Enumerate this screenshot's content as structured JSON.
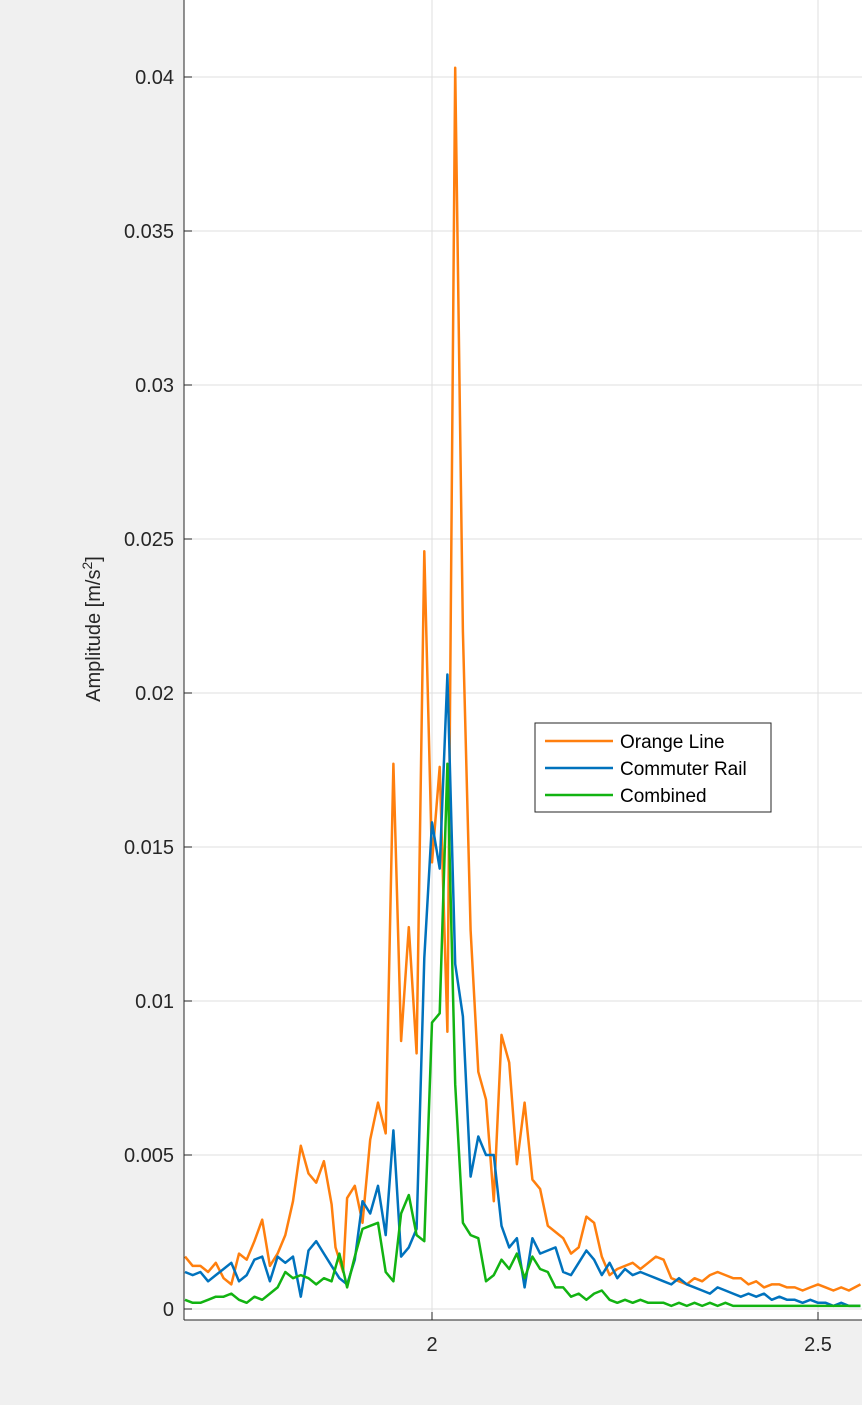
{
  "chart_data": {
    "type": "line",
    "title": "",
    "xlabel": "",
    "ylabel_main": "Amplitude [m/s",
    "ylabel_sup": "2",
    "ylabel_end": "]",
    "xlim": [
      1.68,
      2.555
    ],
    "ylim": [
      0,
      0.0432
    ],
    "grid": true,
    "legend_position": "center-right",
    "x_ticks": [
      {
        "value": 2.0,
        "label": "2"
      },
      {
        "value": 2.5,
        "label": "2.5"
      }
    ],
    "y_ticks": [
      {
        "value": 0,
        "label": "0"
      },
      {
        "value": 0.005,
        "label": "0.005"
      },
      {
        "value": 0.01,
        "label": "0.01"
      },
      {
        "value": 0.015,
        "label": "0.015"
      },
      {
        "value": 0.02,
        "label": "0.02"
      },
      {
        "value": 0.025,
        "label": "0.025"
      },
      {
        "value": 0.03,
        "label": "0.03"
      },
      {
        "value": 0.035,
        "label": "0.035"
      },
      {
        "value": 0.04,
        "label": "0.04"
      }
    ],
    "colors": {
      "background": "#f0f0f0",
      "axes_bg": "#ffffff",
      "grid": "#dfdfdf",
      "axis": "#262626"
    },
    "series": [
      {
        "name": "Orange Line",
        "color": "#ff7f0e",
        "points": [
          [
            1.68,
            0.0017
          ],
          [
            1.69,
            0.0014
          ],
          [
            1.7,
            0.0014
          ],
          [
            1.71,
            0.0012
          ],
          [
            1.72,
            0.0015
          ],
          [
            1.73,
            0.001
          ],
          [
            1.74,
            0.0008
          ],
          [
            1.75,
            0.0018
          ],
          [
            1.76,
            0.0016
          ],
          [
            1.77,
            0.0022
          ],
          [
            1.78,
            0.0029
          ],
          [
            1.79,
            0.0014
          ],
          [
            1.8,
            0.0018
          ],
          [
            1.81,
            0.0024
          ],
          [
            1.82,
            0.0035
          ],
          [
            1.83,
            0.0053
          ],
          [
            1.84,
            0.0044
          ],
          [
            1.85,
            0.0041
          ],
          [
            1.86,
            0.0048
          ],
          [
            1.87,
            0.0034
          ],
          [
            1.875,
            0.002
          ],
          [
            1.885,
            0.0012
          ],
          [
            1.89,
            0.0036
          ],
          [
            1.9,
            0.004
          ],
          [
            1.91,
            0.0028
          ],
          [
            1.92,
            0.0055
          ],
          [
            1.93,
            0.0067
          ],
          [
            1.94,
            0.0057
          ],
          [
            1.95,
            0.0177
          ],
          [
            1.96,
            0.0087
          ],
          [
            1.97,
            0.0124
          ],
          [
            1.98,
            0.0083
          ],
          [
            1.99,
            0.0246
          ],
          [
            2.0,
            0.0145
          ],
          [
            2.01,
            0.0176
          ],
          [
            2.02,
            0.009
          ],
          [
            2.03,
            0.0403
          ],
          [
            2.04,
            0.022
          ],
          [
            2.05,
            0.0123
          ],
          [
            2.06,
            0.0077
          ],
          [
            2.07,
            0.0068
          ],
          [
            2.08,
            0.0035
          ],
          [
            2.09,
            0.0089
          ],
          [
            2.1,
            0.008
          ],
          [
            2.11,
            0.0047
          ],
          [
            2.12,
            0.0067
          ],
          [
            2.13,
            0.0042
          ],
          [
            2.14,
            0.0039
          ],
          [
            2.15,
            0.0027
          ],
          [
            2.16,
            0.0025
          ],
          [
            2.17,
            0.0023
          ],
          [
            2.18,
            0.0018
          ],
          [
            2.19,
            0.002
          ],
          [
            2.2,
            0.003
          ],
          [
            2.21,
            0.0028
          ],
          [
            2.22,
            0.0017
          ],
          [
            2.23,
            0.0011
          ],
          [
            2.24,
            0.0013
          ],
          [
            2.25,
            0.0014
          ],
          [
            2.26,
            0.0015
          ],
          [
            2.27,
            0.0013
          ],
          [
            2.28,
            0.0015
          ],
          [
            2.29,
            0.0017
          ],
          [
            2.3,
            0.0016
          ],
          [
            2.31,
            0.001
          ],
          [
            2.32,
            0.0009
          ],
          [
            2.33,
            0.0008
          ],
          [
            2.34,
            0.001
          ],
          [
            2.35,
            0.0009
          ],
          [
            2.36,
            0.0011
          ],
          [
            2.37,
            0.0012
          ],
          [
            2.38,
            0.0011
          ],
          [
            2.39,
            0.001
          ],
          [
            2.4,
            0.001
          ],
          [
            2.41,
            0.0008
          ],
          [
            2.42,
            0.0009
          ],
          [
            2.43,
            0.0007
          ],
          [
            2.44,
            0.0008
          ],
          [
            2.45,
            0.0008
          ],
          [
            2.46,
            0.0007
          ],
          [
            2.47,
            0.0007
          ],
          [
            2.48,
            0.0006
          ],
          [
            2.49,
            0.0007
          ],
          [
            2.5,
            0.0008
          ],
          [
            2.51,
            0.0007
          ],
          [
            2.52,
            0.0006
          ],
          [
            2.53,
            0.0007
          ],
          [
            2.54,
            0.0006
          ],
          [
            2.555,
            0.0008
          ]
        ]
      },
      {
        "name": "Commuter Rail",
        "color": "#0072bd",
        "points": [
          [
            1.68,
            0.0012
          ],
          [
            1.69,
            0.0011
          ],
          [
            1.7,
            0.0012
          ],
          [
            1.71,
            0.0009
          ],
          [
            1.72,
            0.0011
          ],
          [
            1.73,
            0.0013
          ],
          [
            1.74,
            0.0015
          ],
          [
            1.75,
            0.0009
          ],
          [
            1.76,
            0.0011
          ],
          [
            1.77,
            0.0016
          ],
          [
            1.78,
            0.0017
          ],
          [
            1.79,
            0.0009
          ],
          [
            1.8,
            0.0017
          ],
          [
            1.81,
            0.0015
          ],
          [
            1.82,
            0.0017
          ],
          [
            1.83,
            0.0004
          ],
          [
            1.84,
            0.0019
          ],
          [
            1.85,
            0.0022
          ],
          [
            1.86,
            0.0018
          ],
          [
            1.87,
            0.0014
          ],
          [
            1.88,
            0.001
          ],
          [
            1.89,
            0.0008
          ],
          [
            1.9,
            0.0016
          ],
          [
            1.91,
            0.0035
          ],
          [
            1.92,
            0.0031
          ],
          [
            1.93,
            0.004
          ],
          [
            1.94,
            0.0024
          ],
          [
            1.95,
            0.0058
          ],
          [
            1.96,
            0.0017
          ],
          [
            1.97,
            0.002
          ],
          [
            1.98,
            0.0026
          ],
          [
            1.99,
            0.0114
          ],
          [
            2.0,
            0.0158
          ],
          [
            2.01,
            0.0143
          ],
          [
            2.02,
            0.0206
          ],
          [
            2.03,
            0.0112
          ],
          [
            2.04,
            0.0095
          ],
          [
            2.05,
            0.0043
          ],
          [
            2.06,
            0.0056
          ],
          [
            2.07,
            0.005
          ],
          [
            2.08,
            0.005
          ],
          [
            2.09,
            0.0027
          ],
          [
            2.1,
            0.002
          ],
          [
            2.11,
            0.0023
          ],
          [
            2.12,
            0.0007
          ],
          [
            2.13,
            0.0023
          ],
          [
            2.14,
            0.0018
          ],
          [
            2.15,
            0.0019
          ],
          [
            2.16,
            0.002
          ],
          [
            2.17,
            0.0012
          ],
          [
            2.18,
            0.0011
          ],
          [
            2.19,
            0.0015
          ],
          [
            2.2,
            0.0019
          ],
          [
            2.21,
            0.0016
          ],
          [
            2.22,
            0.0011
          ],
          [
            2.23,
            0.0015
          ],
          [
            2.24,
            0.001
          ],
          [
            2.25,
            0.0013
          ],
          [
            2.26,
            0.0011
          ],
          [
            2.27,
            0.0012
          ],
          [
            2.28,
            0.0011
          ],
          [
            2.29,
            0.001
          ],
          [
            2.3,
            0.0009
          ],
          [
            2.31,
            0.0008
          ],
          [
            2.32,
            0.001
          ],
          [
            2.33,
            0.0008
          ],
          [
            2.34,
            0.0007
          ],
          [
            2.35,
            0.0006
          ],
          [
            2.36,
            0.0005
          ],
          [
            2.37,
            0.0007
          ],
          [
            2.38,
            0.0006
          ],
          [
            2.39,
            0.0005
          ],
          [
            2.4,
            0.0004
          ],
          [
            2.41,
            0.0005
          ],
          [
            2.42,
            0.0004
          ],
          [
            2.43,
            0.0005
          ],
          [
            2.44,
            0.0003
          ],
          [
            2.45,
            0.0004
          ],
          [
            2.46,
            0.0003
          ],
          [
            2.47,
            0.0003
          ],
          [
            2.48,
            0.0002
          ],
          [
            2.49,
            0.0003
          ],
          [
            2.5,
            0.0002
          ],
          [
            2.51,
            0.0002
          ],
          [
            2.52,
            0.0001
          ],
          [
            2.53,
            0.0002
          ],
          [
            2.54,
            0.0001
          ],
          [
            2.555,
            0.0001
          ]
        ]
      },
      {
        "name": "Combined",
        "color": "#12b312",
        "points": [
          [
            1.68,
            0.0003
          ],
          [
            1.69,
            0.0002
          ],
          [
            1.7,
            0.0002
          ],
          [
            1.71,
            0.0003
          ],
          [
            1.72,
            0.0004
          ],
          [
            1.73,
            0.0004
          ],
          [
            1.74,
            0.0005
          ],
          [
            1.75,
            0.0003
          ],
          [
            1.76,
            0.0002
          ],
          [
            1.77,
            0.0004
          ],
          [
            1.78,
            0.0003
          ],
          [
            1.79,
            0.0005
          ],
          [
            1.8,
            0.0007
          ],
          [
            1.81,
            0.0012
          ],
          [
            1.82,
            0.001
          ],
          [
            1.83,
            0.0011
          ],
          [
            1.84,
            0.001
          ],
          [
            1.85,
            0.0008
          ],
          [
            1.86,
            0.001
          ],
          [
            1.87,
            0.0009
          ],
          [
            1.88,
            0.0018
          ],
          [
            1.89,
            0.0007
          ],
          [
            1.9,
            0.0017
          ],
          [
            1.91,
            0.0026
          ],
          [
            1.92,
            0.0027
          ],
          [
            1.93,
            0.0028
          ],
          [
            1.94,
            0.0012
          ],
          [
            1.95,
            0.0009
          ],
          [
            1.96,
            0.0031
          ],
          [
            1.97,
            0.0037
          ],
          [
            1.98,
            0.0024
          ],
          [
            1.99,
            0.0022
          ],
          [
            2.0,
            0.0093
          ],
          [
            2.01,
            0.0096
          ],
          [
            2.02,
            0.0177
          ],
          [
            2.03,
            0.0073
          ],
          [
            2.04,
            0.0028
          ],
          [
            2.05,
            0.0024
          ],
          [
            2.06,
            0.0023
          ],
          [
            2.07,
            0.0009
          ],
          [
            2.08,
            0.0011
          ],
          [
            2.09,
            0.0016
          ],
          [
            2.1,
            0.0013
          ],
          [
            2.11,
            0.0018
          ],
          [
            2.12,
            0.001
          ],
          [
            2.13,
            0.0017
          ],
          [
            2.14,
            0.0013
          ],
          [
            2.15,
            0.0012
          ],
          [
            2.16,
            0.0007
          ],
          [
            2.17,
            0.0007
          ],
          [
            2.18,
            0.0004
          ],
          [
            2.19,
            0.0005
          ],
          [
            2.2,
            0.0003
          ],
          [
            2.21,
            0.0005
          ],
          [
            2.22,
            0.0006
          ],
          [
            2.23,
            0.0003
          ],
          [
            2.24,
            0.0002
          ],
          [
            2.25,
            0.0003
          ],
          [
            2.26,
            0.0002
          ],
          [
            2.27,
            0.0003
          ],
          [
            2.28,
            0.0002
          ],
          [
            2.29,
            0.0002
          ],
          [
            2.3,
            0.0002
          ],
          [
            2.31,
            0.0001
          ],
          [
            2.32,
            0.0002
          ],
          [
            2.33,
            0.0001
          ],
          [
            2.34,
            0.0002
          ],
          [
            2.35,
            0.0001
          ],
          [
            2.36,
            0.0002
          ],
          [
            2.37,
            0.0001
          ],
          [
            2.38,
            0.0002
          ],
          [
            2.39,
            0.0001
          ],
          [
            2.4,
            0.0001
          ],
          [
            2.41,
            0.0001
          ],
          [
            2.42,
            0.0001
          ],
          [
            2.43,
            0.0001
          ],
          [
            2.44,
            0.0001
          ],
          [
            2.45,
            0.0001
          ],
          [
            2.46,
            0.0001
          ],
          [
            2.47,
            0.0001
          ],
          [
            2.48,
            0.0001
          ],
          [
            2.49,
            0.0001
          ],
          [
            2.5,
            0.0001
          ],
          [
            2.51,
            0.0001
          ],
          [
            2.52,
            0.0001
          ],
          [
            2.53,
            0.0001
          ],
          [
            2.54,
            0.0001
          ],
          [
            2.555,
            0.0001
          ]
        ]
      }
    ]
  }
}
